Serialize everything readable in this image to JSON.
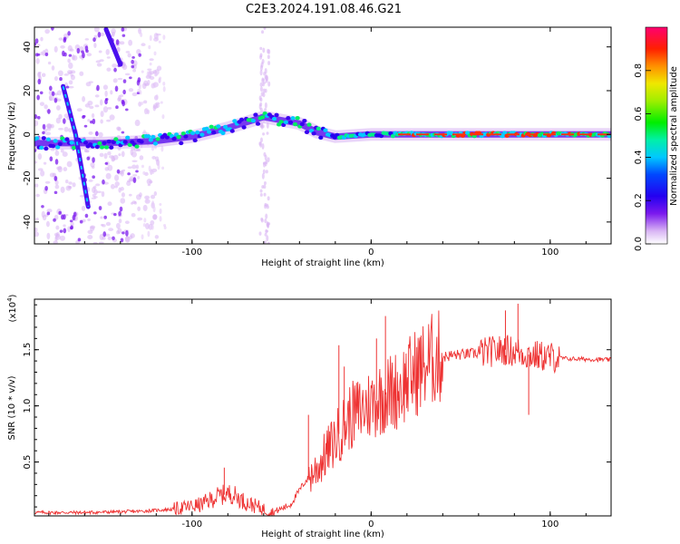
{
  "title": "C2E3.2024.191.08.46.G21",
  "chart_data": [
    {
      "type": "heatmap",
      "name": "spectrogram",
      "xlabel": "Height of straight line (km)",
      "ylabel": "Frequency (Hz)",
      "xlim": [
        -188,
        134
      ],
      "ylim": [
        -50,
        49
      ],
      "x_ticks": [
        -100,
        0,
        100
      ],
      "x_tick_labels": [
        "-100",
        "0",
        "100"
      ],
      "y_ticks": [
        -40,
        -20,
        0,
        20,
        40
      ],
      "y_tick_labels": [
        "-40",
        "-20",
        "0",
        "20",
        "40"
      ],
      "colorbar": {
        "label": "Normalized spectral amplitude",
        "range": [
          0,
          1
        ],
        "ticks": [
          0.0,
          0.2,
          0.4,
          0.6,
          0.8
        ],
        "tick_labels": [
          "0.0",
          "0.2",
          "0.4",
          "0.6",
          "0.8"
        ],
        "colormap": "rainbow (violet to red)"
      },
      "features": [
        {
          "name": "main carrier trace",
          "points": [
            [
              -188,
              -4
            ],
            [
              -150,
              -4
            ],
            [
              -120,
              -3
            ],
            [
              -100,
              -1
            ],
            [
              -80,
              3
            ],
            [
              -60,
              8
            ],
            [
              -40,
              5
            ],
            [
              -30,
              1
            ],
            [
              -20,
              -1
            ],
            [
              0,
              0
            ],
            [
              134,
              0
            ]
          ]
        },
        {
          "name": "diagonal streak",
          "points": [
            [
              -172,
              22
            ],
            [
              -165,
              0
            ],
            [
              -158,
              -33
            ]
          ]
        },
        {
          "name": "diagonal streak upper",
          "points": [
            [
              -148,
              48
            ],
            [
              -140,
              32
            ]
          ]
        }
      ]
    },
    {
      "type": "line",
      "name": "snr",
      "xlabel": "Height of straight line (km)",
      "ylabel": "SNR (10 * v/v)",
      "y_scale_note": "(x10",
      "y_scale_exp": "4",
      "xlim": [
        -188,
        134
      ],
      "ylim": [
        0.02,
        1.95
      ],
      "x_ticks": [
        -100,
        0,
        100
      ],
      "x_tick_labels": [
        "-100",
        "0",
        "100"
      ],
      "y_ticks": [
        0.5,
        1.0,
        1.5
      ],
      "y_tick_labels": [
        "0.5",
        "1.0",
        "1.5"
      ],
      "color": "#ee3333",
      "envelope": [
        [
          -188,
          0.05
        ],
        [
          -160,
          0.05
        ],
        [
          -130,
          0.06
        ],
        [
          -110,
          0.08
        ],
        [
          -95,
          0.12
        ],
        [
          -85,
          0.2
        ],
        [
          -78,
          0.22
        ],
        [
          -70,
          0.14
        ],
        [
          -55,
          0.05
        ],
        [
          -45,
          0.12
        ],
        [
          -38,
          0.3
        ],
        [
          -30,
          0.45
        ],
        [
          -22,
          0.65
        ],
        [
          -12,
          0.9
        ],
        [
          -2,
          1.0
        ],
        [
          8,
          1.1
        ],
        [
          15,
          1.15
        ],
        [
          25,
          1.3
        ],
        [
          35,
          1.42
        ],
        [
          45,
          1.45
        ],
        [
          60,
          1.47
        ],
        [
          75,
          1.5
        ],
        [
          90,
          1.45
        ],
        [
          110,
          1.42
        ],
        [
          134,
          1.41
        ]
      ],
      "spikes": [
        [
          -18,
          1.54
        ],
        [
          8,
          1.8
        ],
        [
          75,
          1.85
        ],
        [
          82,
          1.91
        ],
        [
          -82,
          0.45
        ],
        [
          -35,
          0.92
        ],
        [
          -15,
          1.35
        ],
        [
          3,
          1.6
        ],
        [
          88,
          0.92
        ]
      ]
    }
  ]
}
